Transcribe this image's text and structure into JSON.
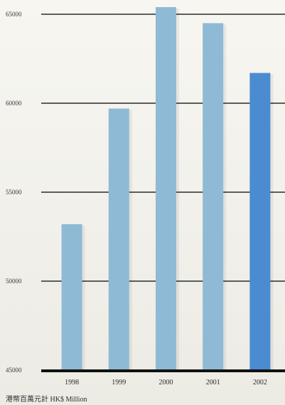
{
  "chart_data": {
    "type": "bar",
    "categories": [
      "1998",
      "1999",
      "2000",
      "2001",
      "2002"
    ],
    "values": [
      53200,
      59700,
      65400,
      64500,
      61700
    ],
    "ylim": [
      45000,
      65000
    ],
    "yticks": [
      "45000",
      "50000",
      "55000",
      "60000",
      "65000"
    ],
    "ylabel": "",
    "xlabel": "",
    "title": "",
    "unit_label": "港幣百萬元計 HK$ Million",
    "grid": true,
    "colors": {
      "bar": "#8fbad6",
      "highlight_bar": "#4a8ccf",
      "gridline": "#2b2b2b",
      "axis": "#111111",
      "background": "#f4f2ec"
    },
    "highlight_index": 4
  }
}
